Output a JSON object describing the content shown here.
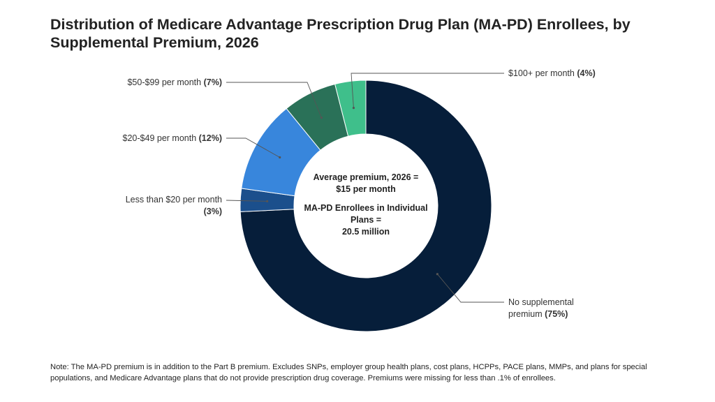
{
  "title": "Distribution of Medicare Advantage Prescription Drug Plan (MA-PD) Enrollees, by Supplemental Premium, 2026",
  "chart_data": {
    "type": "pie",
    "donut": true,
    "slices": [
      {
        "label_lines": [
          "No supplemental",
          "premium"
        ],
        "pct_label": "(75%)",
        "value": 75,
        "color": "#061e3a"
      },
      {
        "label_lines": [
          "Less than $20 per month"
        ],
        "pct_label": "(3%)",
        "value": 3,
        "color": "#1b4f8c"
      },
      {
        "label_lines": [
          "$20-$49 per month"
        ],
        "pct_label": "(12%)",
        "value": 12,
        "color": "#3886dc"
      },
      {
        "label_lines": [
          "$50-$99 per month"
        ],
        "pct_label": "(7%)",
        "value": 7,
        "color": "#2a7158"
      },
      {
        "label_lines": [
          "$100+ per month"
        ],
        "pct_label": "(4%)",
        "value": 4,
        "color": "#3fbf8b"
      }
    ],
    "center_text": [
      "Average premium, 2026 =",
      "$15 per month",
      "",
      "MA-PD Enrollees in Individual",
      "Plans =",
      "20.5 million"
    ]
  },
  "note": "Note: The MA-PD premium is in addition to the Part B premium. Excludes SNPs, employer group health plans, cost plans, HCPPs, PACE plans, MMPs, and plans for special populations, and Medicare Advantage plans that do not provide prescription drug coverage. Premiums were missing for less than .1% of enrollees."
}
